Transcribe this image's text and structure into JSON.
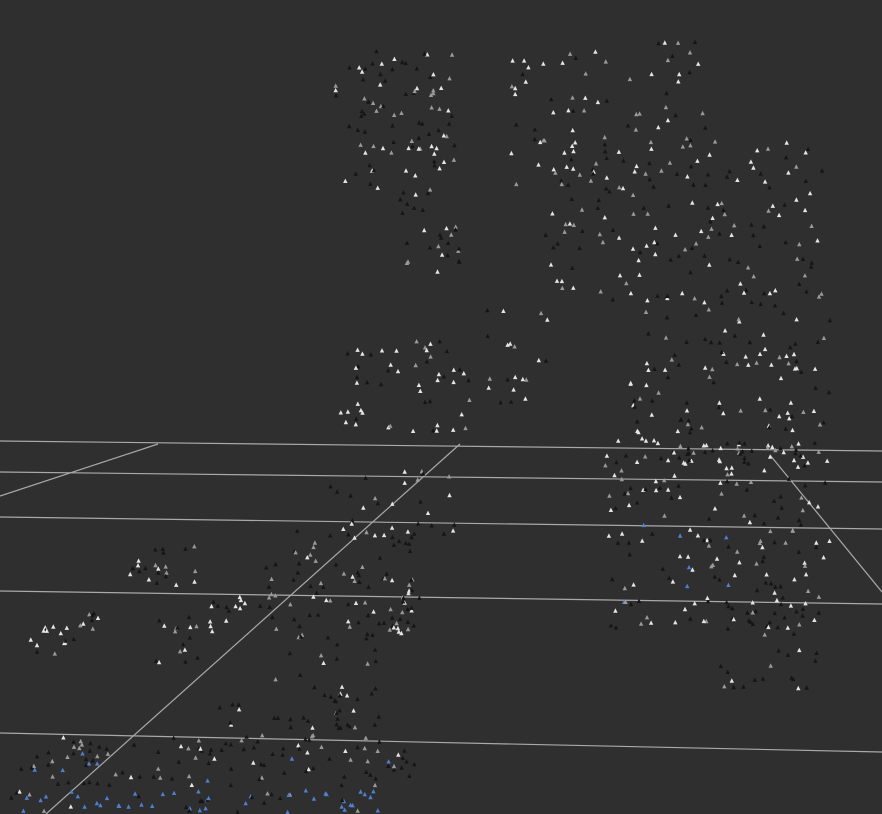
{
  "viewport": {
    "background_color": "#2f2f2f",
    "grid_color": "#a9a9a9",
    "point_colors": {
      "light": "#e6e6e6",
      "mid": "#9a9a9a",
      "dark": "#151515",
      "blue": "#4f7fd0"
    }
  }
}
